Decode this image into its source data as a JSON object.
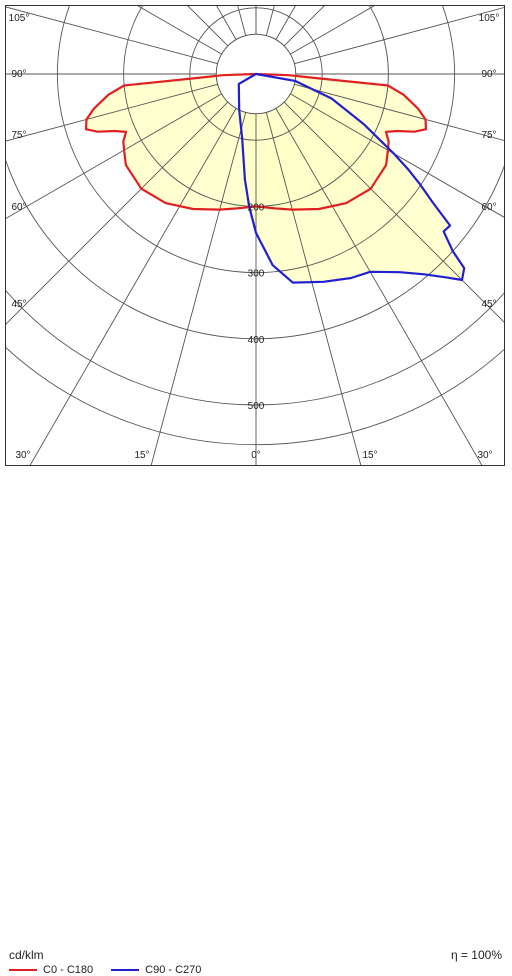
{
  "chart_data": {
    "type": "polar",
    "unit_label": "cd/klm",
    "efficiency_label": "η = 100%",
    "radial_ticks": [
      100,
      200,
      300,
      400,
      500
    ],
    "radial_tick_labels": [
      "200",
      "300",
      "400",
      "500"
    ],
    "angle_ticks": [
      0,
      15,
      30,
      45,
      60,
      75,
      90,
      105
    ],
    "angle_tick_labels": [
      "0°",
      "15°",
      "30°",
      "45°",
      "60°",
      "75°",
      "90°",
      "105°"
    ],
    "series": [
      {
        "name": "C0 - C180",
        "color": "#e02020",
        "fill": "#ffffc8",
        "points": [
          [
            -90,
            0
          ],
          [
            -88,
            50
          ],
          [
            -86,
            95
          ],
          [
            -85,
            200
          ],
          [
            -82,
            225
          ],
          [
            -78,
            250
          ],
          [
            -75,
            265
          ],
          [
            -72,
            270
          ],
          [
            -70,
            255
          ],
          [
            -68,
            230
          ],
          [
            -66,
            215
          ],
          [
            -63,
            225
          ],
          [
            -60,
            230
          ],
          [
            -55,
            240
          ],
          [
            -45,
            245
          ],
          [
            -35,
            238
          ],
          [
            -25,
            225
          ],
          [
            -15,
            212
          ],
          [
            -8,
            205
          ],
          [
            0,
            200
          ],
          [
            8,
            205
          ],
          [
            15,
            212
          ],
          [
            25,
            225
          ],
          [
            35,
            238
          ],
          [
            45,
            245
          ],
          [
            55,
            240
          ],
          [
            60,
            230
          ],
          [
            63,
            225
          ],
          [
            66,
            215
          ],
          [
            68,
            230
          ],
          [
            70,
            255
          ],
          [
            72,
            270
          ],
          [
            75,
            265
          ],
          [
            78,
            250
          ],
          [
            82,
            225
          ],
          [
            85,
            200
          ],
          [
            86,
            95
          ],
          [
            88,
            50
          ],
          [
            90,
            0
          ]
        ]
      },
      {
        "name": "C90 - C270",
        "color": "#2020d0",
        "fill": "#ffffc8",
        "points": [
          [
            -90,
            0
          ],
          [
            -60,
            30
          ],
          [
            -25,
            60
          ],
          [
            -12,
            100
          ],
          [
            -6,
            160
          ],
          [
            -3,
            200
          ],
          [
            0,
            240
          ],
          [
            5,
            290
          ],
          [
            10,
            320
          ],
          [
            18,
            330
          ],
          [
            25,
            340
          ],
          [
            30,
            345
          ],
          [
            36,
            370
          ],
          [
            40,
            395
          ],
          [
            43,
            420
          ],
          [
            45,
            440
          ],
          [
            47,
            430
          ],
          [
            48,
            400
          ],
          [
            50,
            370
          ],
          [
            52,
            372
          ],
          [
            54,
            330
          ],
          [
            56,
            300
          ],
          [
            58,
            270
          ],
          [
            60,
            240
          ],
          [
            65,
            180
          ],
          [
            72,
            120
          ],
          [
            80,
            60
          ],
          [
            90,
            0
          ]
        ]
      }
    ]
  }
}
